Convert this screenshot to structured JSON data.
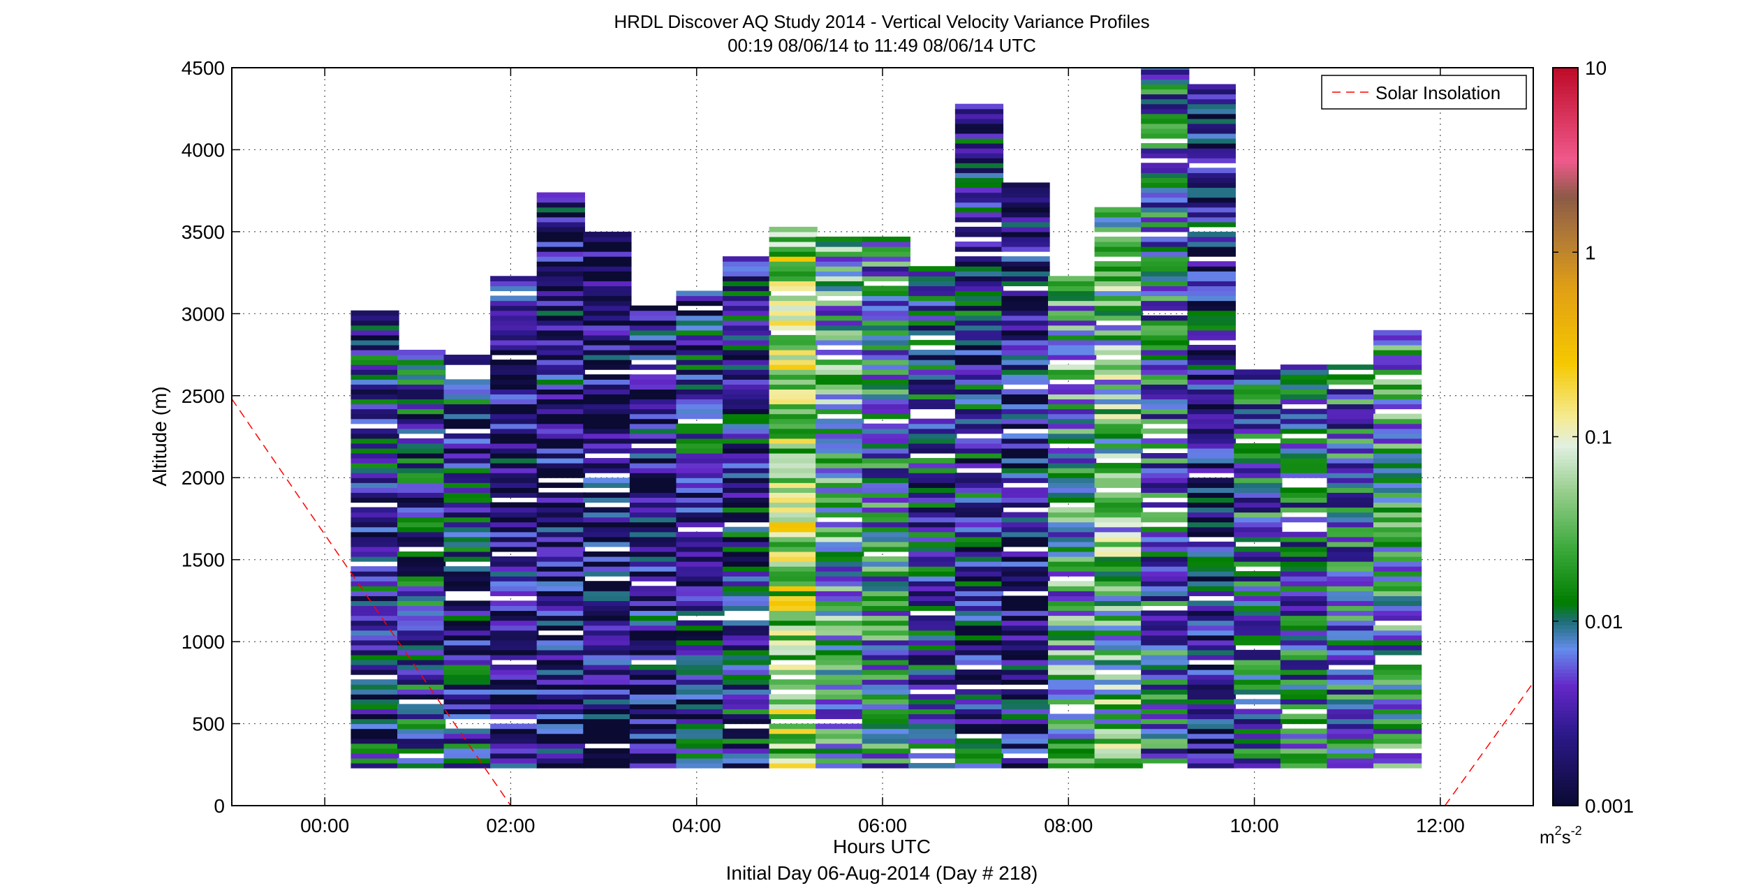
{
  "chart_data": {
    "type": "heatmap",
    "title": "HRDL Discover AQ Study 2014 - Vertical Velocity Variance Profiles",
    "subtitle": "00:19 08/06/14 to 11:49 08/06/14  UTC",
    "xlabel": "Hours UTC",
    "xlabel2": "Initial Day 06-Aug-2014 (Day # 218)",
    "ylabel": "Altitude (m)",
    "xlim": [
      -1,
      13
    ],
    "ylim": [
      0,
      4500
    ],
    "x_ticks": [
      0,
      2,
      4,
      6,
      8,
      10,
      12
    ],
    "x_tick_labels": [
      "00:00",
      "02:00",
      "04:00",
      "06:00",
      "08:00",
      "10:00",
      "12:00"
    ],
    "y_ticks": [
      0,
      500,
      1000,
      1500,
      2000,
      2500,
      3000,
      3500,
      4000,
      4500
    ],
    "y_tick_labels": [
      "0",
      "500",
      "1000",
      "1500",
      "2000",
      "2500",
      "3000",
      "3500",
      "4000",
      "4500"
    ],
    "grid": true,
    "colorbar": {
      "scale": "log",
      "range": [
        0.001,
        10
      ],
      "tick_values": [
        0.001,
        0.01,
        0.1,
        1,
        10
      ],
      "tick_labels": [
        "0.001",
        "0.01",
        "0.1",
        "1",
        "10"
      ],
      "units_base": "m",
      "units_exp1": "2",
      "units_mid": "s",
      "units_exp2": "-2"
    },
    "legend": {
      "position": "top-right",
      "entries": [
        {
          "name": "Solar Insolation",
          "color": "#ff0000",
          "style": "dashed"
        }
      ]
    },
    "solar_insolation": [
      {
        "x": [
          -1.0,
          2.0
        ],
        "y": [
          2480,
          0
        ]
      },
      {
        "x": [
          12.05,
          13.0
        ],
        "y": [
          0,
          750
        ]
      }
    ],
    "columns": [
      {
        "center": 0.54,
        "base": 230,
        "top": 3020,
        "level": -2.4
      },
      {
        "center": 1.04,
        "base": 230,
        "top": 2780,
        "level": -2.3
      },
      {
        "center": 1.54,
        "base": 230,
        "top": 2740,
        "level": -2.4
      },
      {
        "center": 2.04,
        "base": 230,
        "top": 3230,
        "level": -2.6
      },
      {
        "center": 2.54,
        "base": 230,
        "top": 3740,
        "level": -2.6
      },
      {
        "center": 3.04,
        "base": 230,
        "top": 3500,
        "level": -2.7
      },
      {
        "center": 3.54,
        "base": 230,
        "top": 3030,
        "level": -2.6
      },
      {
        "center": 4.04,
        "base": 230,
        "top": 3130,
        "level": -2.4
      },
      {
        "center": 4.54,
        "base": 230,
        "top": 3350,
        "level": -2.4
      },
      {
        "center": 5.04,
        "base": 230,
        "top": 3510,
        "level": -1.2
      },
      {
        "center": 5.54,
        "base": 230,
        "top": 3450,
        "level": -1.8
      },
      {
        "center": 6.04,
        "base": 230,
        "top": 3450,
        "level": -2.0
      },
      {
        "center": 6.54,
        "base": 230,
        "top": 3290,
        "level": -2.3
      },
      {
        "center": 7.04,
        "base": 230,
        "top": 4270,
        "level": -2.4
      },
      {
        "center": 7.54,
        "base": 230,
        "top": 3780,
        "level": -2.6
      },
      {
        "center": 8.04,
        "base": 230,
        "top": 3230,
        "level": -1.8
      },
      {
        "center": 8.54,
        "base": 230,
        "top": 3650,
        "level": -1.6
      },
      {
        "center": 9.04,
        "base": 230,
        "top": 4500,
        "level": -2.1
      },
      {
        "center": 9.54,
        "base": 230,
        "top": 4400,
        "level": -2.5
      },
      {
        "center": 10.04,
        "base": 230,
        "top": 2640,
        "level": -2.1
      },
      {
        "center": 10.54,
        "base": 230,
        "top": 2690,
        "level": -2.1
      },
      {
        "center": 11.04,
        "base": 230,
        "top": 2670,
        "level": -2.1
      },
      {
        "center": 11.54,
        "base": 230,
        "top": 2900,
        "level": -1.9
      }
    ]
  }
}
